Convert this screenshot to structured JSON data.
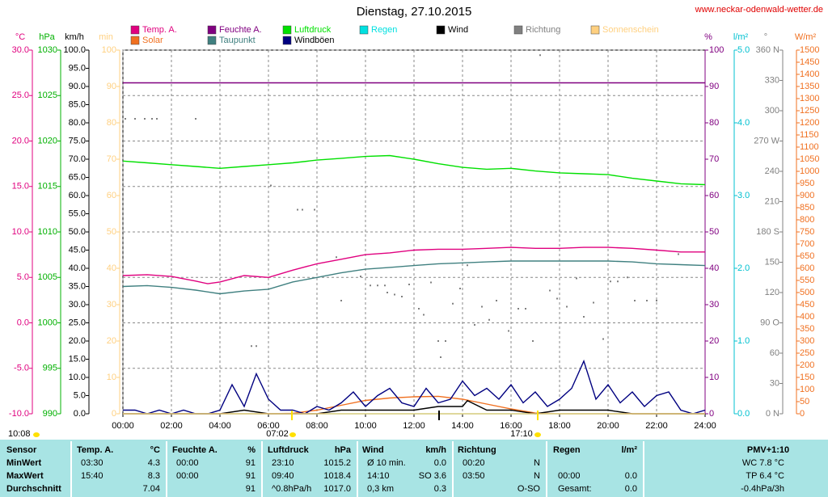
{
  "title": "Dienstag, 27.10.2015",
  "site": "www.neckar-odenwald-wetter.de",
  "chart_data": {
    "type": "line",
    "grid": true,
    "xlim": [
      0,
      24
    ],
    "xticks": [
      {
        "value": 0,
        "label": "00:00"
      },
      {
        "value": 2,
        "label": "02:00"
      },
      {
        "value": 4,
        "label": "04:00"
      },
      {
        "value": 6,
        "label": "06:00"
      },
      {
        "value": 8,
        "label": "08:00"
      },
      {
        "value": 10,
        "label": "10:00"
      },
      {
        "value": 12,
        "label": "12:00"
      },
      {
        "value": 14,
        "label": "14:00"
      },
      {
        "value": 16,
        "label": "16:00"
      },
      {
        "value": 18,
        "label": "18:00"
      },
      {
        "value": 20,
        "label": "20:00"
      },
      {
        "value": 22,
        "label": "22:00"
      },
      {
        "value": 24,
        "label": "24:00"
      }
    ],
    "axes": [
      {
        "label": "°C",
        "color": "#e0007f",
        "lim": [
          -10,
          30
        ],
        "ticks": [
          {
            "value": -10,
            "label": "-10.0"
          },
          {
            "value": -5,
            "label": "-5.0"
          },
          {
            "value": 0,
            "label": "0.0"
          },
          {
            "value": 5,
            "label": "5.0"
          },
          {
            "value": 10,
            "label": "10.0"
          },
          {
            "value": 15,
            "label": "15.0"
          },
          {
            "value": 20,
            "label": "20.0"
          },
          {
            "value": 25,
            "label": "25.0"
          },
          {
            "value": 30,
            "label": "30.0"
          }
        ]
      },
      {
        "label": "hPa",
        "color": "#00b000",
        "lim": [
          990,
          1030
        ],
        "ticks": [
          990,
          995,
          1000,
          1005,
          1010,
          1015,
          1020,
          1025,
          1030
        ]
      },
      {
        "label": "km/h",
        "color": "#000000",
        "lim": [
          0,
          100
        ],
        "ticks": [
          {
            "value": 0,
            "label": "0.0"
          },
          {
            "value": 5,
            "label": "5.0"
          },
          {
            "value": 10,
            "label": "10.0"
          },
          {
            "value": 15,
            "label": "15.0"
          },
          {
            "value": 20,
            "label": "20.0"
          },
          {
            "value": 25,
            "label": "25.0"
          },
          {
            "value": 30,
            "label": "30.0"
          },
          {
            "value": 35,
            "label": "35.0"
          },
          {
            "value": 40,
            "label": "40.0"
          },
          {
            "value": 45,
            "label": "45.0"
          },
          {
            "value": 50,
            "label": "50.0"
          },
          {
            "value": 55,
            "label": "55.0"
          },
          {
            "value": 60,
            "label": "60.0"
          },
          {
            "value": 65,
            "label": "65.0"
          },
          {
            "value": 70,
            "label": "70.0"
          },
          {
            "value": 75,
            "label": "75.0"
          },
          {
            "value": 80,
            "label": "80.0"
          },
          {
            "value": 85,
            "label": "85.0"
          },
          {
            "value": 90,
            "label": "90.0"
          },
          {
            "value": 95,
            "label": "95.0"
          },
          {
            "value": 100,
            "label": "100.0"
          }
        ]
      },
      {
        "label": "min",
        "color": "#ffd080",
        "lim": [
          0,
          100
        ],
        "ticks": [
          0,
          10,
          20,
          30,
          40,
          50,
          60,
          70,
          80,
          90,
          100
        ]
      },
      {
        "label": "%",
        "color": "#800080",
        "lim": [
          0,
          100
        ],
        "ticks": [
          0,
          10,
          20,
          30,
          40,
          50,
          60,
          70,
          80,
          90,
          100
        ]
      },
      {
        "label": "l/m²",
        "color": "#00c0d0",
        "lim": [
          0,
          5
        ],
        "ticks": [
          {
            "value": 0,
            "label": "0.0"
          },
          {
            "value": 1,
            "label": "1.0"
          },
          {
            "value": 2,
            "label": "2.0"
          },
          {
            "value": 3,
            "label": "3.0"
          },
          {
            "value": 4,
            "label": "4.0"
          },
          {
            "value": 5,
            "label": "5.0"
          }
        ]
      },
      {
        "label": "°",
        "color": "#808080",
        "lim": [
          0,
          360
        ],
        "ticks": [
          {
            "value": 0,
            "label": "0 N"
          },
          30,
          60,
          {
            "value": 90,
            "label": "90 O"
          },
          120,
          150,
          {
            "value": 180,
            "label": "180 S"
          },
          210,
          240,
          {
            "value": 270,
            "label": "270 W"
          },
          300,
          330,
          {
            "value": 360,
            "label": "360 N"
          }
        ]
      },
      {
        "label": "W/m²",
        "color": "#f07020",
        "lim": [
          0,
          1500
        ],
        "ticks": [
          0,
          50,
          100,
          150,
          200,
          250,
          300,
          350,
          400,
          450,
          500,
          550,
          600,
          650,
          700,
          750,
          800,
          850,
          900,
          950,
          1000,
          1050,
          1100,
          1150,
          1200,
          1250,
          1300,
          1350,
          1400,
          1450,
          1500
        ]
      }
    ],
    "series": [
      {
        "name": "Temp. A.",
        "color": "#e0007f",
        "axis": "°C",
        "x": [
          0,
          1,
          2,
          3,
          3.5,
          4,
          5,
          6,
          7,
          8,
          9,
          10,
          11,
          12,
          13,
          14,
          15,
          16,
          17,
          18,
          19,
          20,
          21,
          22,
          23,
          24
        ],
        "values": [
          5.2,
          5.3,
          5.1,
          4.6,
          4.3,
          4.5,
          5.2,
          5.0,
          5.8,
          6.5,
          7.0,
          7.5,
          7.7,
          8.0,
          8.1,
          8.1,
          8.2,
          8.3,
          8.2,
          8.2,
          8.3,
          8.3,
          8.2,
          8.0,
          7.8,
          7.8
        ]
      },
      {
        "name": "Solar",
        "color": "#f07020",
        "axis": "W/m²",
        "x": [
          0,
          1,
          2,
          3,
          4,
          5,
          6,
          7,
          8,
          9,
          10,
          11,
          12,
          13,
          14,
          15,
          16,
          17,
          18,
          19,
          20,
          21,
          22,
          23,
          24
        ],
        "values": [
          0,
          0,
          0,
          0,
          0,
          0,
          0,
          2,
          15,
          35,
          55,
          65,
          70,
          72,
          60,
          40,
          20,
          3,
          0,
          0,
          0,
          0,
          0,
          0,
          0
        ]
      },
      {
        "name": "Feuchte A.",
        "color": "#800080",
        "axis": "%",
        "x": [
          0,
          24
        ],
        "values": [
          91,
          91
        ]
      },
      {
        "name": "Taupunkt",
        "color": "#408080",
        "axis": "°C",
        "x": [
          0,
          1,
          2,
          3,
          4,
          5,
          6,
          7,
          8,
          9,
          10,
          11,
          12,
          13,
          14,
          15,
          16,
          17,
          18,
          19,
          20,
          21,
          22,
          23,
          24
        ],
        "values": [
          4.0,
          4.1,
          3.9,
          3.6,
          3.2,
          3.5,
          3.7,
          4.5,
          5.0,
          5.5,
          5.9,
          6.1,
          6.3,
          6.5,
          6.6,
          6.7,
          6.8,
          6.8,
          6.8,
          6.8,
          6.8,
          6.7,
          6.5,
          6.4,
          6.3
        ]
      },
      {
        "name": "Luftdruck",
        "color": "#00e000",
        "axis": "hPa",
        "x": [
          0,
          1,
          2,
          3,
          4,
          5,
          6,
          7,
          8,
          9,
          10,
          11,
          12,
          13,
          14,
          15,
          16,
          17,
          18,
          19,
          20,
          21,
          22,
          23,
          24
        ],
        "values": [
          1017.8,
          1017.6,
          1017.4,
          1017.2,
          1017.0,
          1017.2,
          1017.4,
          1017.6,
          1017.9,
          1018.1,
          1018.3,
          1018.4,
          1018.0,
          1017.5,
          1017.1,
          1016.9,
          1017.0,
          1016.7,
          1016.5,
          1016.4,
          1016.3,
          1015.9,
          1015.6,
          1015.3,
          1015.2
        ]
      },
      {
        "name": "Windböen",
        "color": "#000080",
        "axis": "km/h",
        "x": [
          0,
          0.5,
          1,
          1.5,
          2,
          2.5,
          3,
          3.5,
          4,
          4.5,
          5,
          5.5,
          6,
          6.5,
          7,
          7.5,
          8,
          8.5,
          9,
          9.5,
          10,
          10.5,
          11,
          11.5,
          12,
          12.5,
          13,
          13.5,
          14,
          14.5,
          15,
          15.5,
          16,
          16.5,
          17,
          17.5,
          18,
          18.5,
          19,
          19.5,
          20,
          20.5,
          21,
          21.5,
          22,
          22.5,
          23,
          23.5,
          24
        ],
        "values": [
          1,
          1,
          0,
          1,
          0,
          1,
          0,
          0,
          1,
          8,
          2,
          11,
          4,
          1,
          1,
          0,
          2,
          1,
          3,
          6,
          2,
          5,
          7,
          3,
          2,
          7,
          3,
          4,
          9,
          5,
          7,
          4,
          8,
          3,
          6,
          2,
          4,
          7,
          14.5,
          4,
          8,
          3,
          6,
          2,
          5,
          6,
          1,
          0,
          1
        ]
      },
      {
        "name": "Regen",
        "color": "#00e0e0",
        "axis": "l/m²",
        "x": [
          0,
          24
        ],
        "values": [
          0,
          0
        ]
      },
      {
        "name": "Wind",
        "color": "#000000",
        "axis": "km/h",
        "x": [
          0,
          1,
          2,
          3,
          4,
          5,
          6,
          7,
          8,
          9,
          10,
          11,
          12,
          13,
          14,
          14.2,
          15,
          16,
          17,
          18,
          19,
          20,
          21,
          22,
          23,
          24
        ],
        "values": [
          0,
          0,
          0,
          0,
          0,
          1,
          0,
          0,
          0,
          1,
          1,
          1,
          1,
          2,
          2,
          3.6,
          1,
          1,
          0,
          1,
          1,
          1,
          0,
          0,
          0,
          0
        ]
      },
      {
        "name": "Richtung",
        "color": "#808080",
        "axis": "°",
        "style": "points",
        "x": [
          0.1,
          0.5,
          0.9,
          1.2,
          1.4,
          3.0,
          5.3,
          5.5,
          6.1,
          7.2,
          7.4,
          7.9,
          8.8,
          9.0,
          9.8,
          10.2,
          10.5,
          10.8,
          10.9,
          11.2,
          11.5,
          11.8,
          12.2,
          12.4,
          12.7,
          13.0,
          13.1,
          13.3,
          13.6,
          13.9,
          14.2,
          14.5,
          14.8,
          15.1,
          15.4,
          15.9,
          16.3,
          16.6,
          16.9,
          17.2,
          17.6,
          17.9,
          18.3,
          18.7,
          19.0,
          19.4,
          19.8,
          20.1,
          20.4,
          20.8,
          21.1,
          21.6,
          22.0,
          22.9
        ],
        "values": [
          292,
          292,
          292,
          292,
          292,
          292,
          67,
          67,
          226,
          202,
          202,
          202,
          155,
          112,
          136,
          127,
          127,
          127,
          120,
          118,
          116,
          128,
          104,
          98,
          130,
          72,
          56,
          72,
          109,
          124,
          147,
          88,
          106,
          93,
          112,
          82,
          104,
          104,
          72,
          355,
          122,
          114,
          106,
          134,
          96,
          110,
          74,
          131,
          131,
          135,
          112,
          112,
          112,
          158
        ]
      },
      {
        "name": "Sonnenschein",
        "color": "#ffd080",
        "axis": "min",
        "x": [
          0,
          24
        ],
        "values": [
          0,
          0
        ]
      }
    ],
    "annotations": {
      "sunrise": "07:02",
      "sunset": "17:10",
      "daylength": "10:08"
    }
  },
  "table": {
    "header": {
      "sensor": "Sensor",
      "temp": "Temp. A.",
      "temp_unit": "°C",
      "hum": "Feuchte A.",
      "hum_unit": "%",
      "pres": "Luftdruck",
      "pres_unit": "hPa",
      "wind": "Wind",
      "wind_unit": "km/h",
      "dir": "Richtung",
      "rain": "Regen",
      "rain_unit": "l/m²",
      "pmv": "PMV+1:10"
    },
    "rows": [
      {
        "sensor": "MinWert",
        "temp_t": "03:30",
        "temp_v": "4.3",
        "hum_t": "00:00",
        "hum_v": "91",
        "pres_t": "23:10",
        "pres_v": "1015.2",
        "wind_t": "Ø 10 min.",
        "wind_v": "0.0",
        "dir_t": "00:20",
        "dir_v": "N",
        "pmv": "WC 7.8 °C"
      },
      {
        "sensor": "MaxWert",
        "temp_t": "15:40",
        "temp_v": "8.3",
        "hum_t": "00:00",
        "hum_v": "91",
        "pres_t": "09:40",
        "pres_v": "1018.4",
        "wind_t": "14:10",
        "wind_v": "SO 3.6",
        "dir_t": "03:50",
        "dir_v": "N",
        "rain_t": "00:00",
        "rain_v": "0.0",
        "pmv": "TP 6.4 °C"
      },
      {
        "sensor": "Durchschnitt",
        "temp_v": "7.04",
        "hum_v": "91",
        "pres_t": "^0.8hPa/h",
        "pres_v": "1017.0",
        "wind_t": "0,3 km",
        "wind_v": "0.3",
        "dir_v": "O-SO",
        "rain_t": "Gesamt:",
        "rain_v": "0.0",
        "pmv": "-0.4hPa/3h"
      }
    ]
  }
}
